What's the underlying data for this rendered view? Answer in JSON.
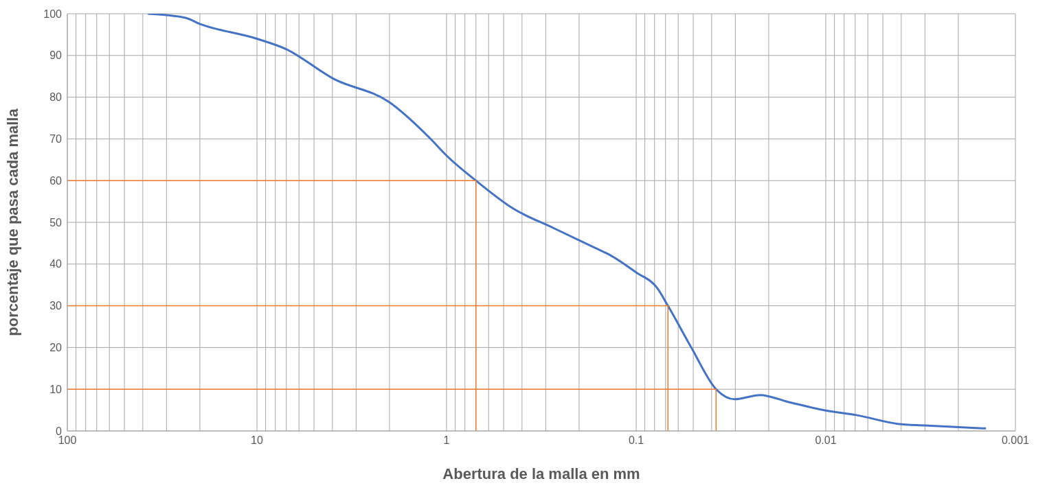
{
  "chart_data": {
    "type": "line",
    "xlabel": "Abertura de la malla en mm",
    "ylabel": "porcentaje que pasa cada malla",
    "log": "x",
    "grid": true,
    "marker": "none",
    "line_style": "solid",
    "xlim": [
      100,
      0.001
    ],
    "ylim": [
      0,
      100
    ],
    "xticks": [
      100,
      {
        "value": 90,
        "label": null
      },
      {
        "value": 80,
        "label": null
      },
      {
        "value": 70,
        "label": null
      },
      {
        "value": 60,
        "label": null
      },
      {
        "value": 50,
        "label": null
      },
      {
        "value": 40,
        "label": null
      },
      {
        "value": 30,
        "label": null
      },
      {
        "value": 20,
        "label": null
      },
      10,
      {
        "value": 9,
        "label": null
      },
      {
        "value": 8,
        "label": null
      },
      {
        "value": 7,
        "label": null
      },
      {
        "value": 6,
        "label": null
      },
      {
        "value": 5,
        "label": null
      },
      {
        "value": 4,
        "label": null
      },
      {
        "value": 3,
        "label": null
      },
      {
        "value": 2,
        "label": null
      },
      1,
      {
        "value": 0.9,
        "label": null
      },
      {
        "value": 0.8,
        "label": null
      },
      {
        "value": 0.7,
        "label": null
      },
      {
        "value": 0.6,
        "label": null
      },
      {
        "value": 0.5,
        "label": null
      },
      {
        "value": 0.4,
        "label": null
      },
      {
        "value": 0.3,
        "label": null
      },
      {
        "value": 0.2,
        "label": null
      },
      0.1,
      {
        "value": 0.09,
        "label": null
      },
      {
        "value": 0.08,
        "label": null
      },
      {
        "value": 0.07,
        "label": null
      },
      {
        "value": 0.06,
        "label": null
      },
      {
        "value": 0.05,
        "label": null
      },
      {
        "value": 0.04,
        "label": null
      },
      {
        "value": 0.03,
        "label": null
      },
      {
        "value": 0.02,
        "label": null
      },
      0.01,
      {
        "value": 0.009,
        "label": null
      },
      {
        "value": 0.008,
        "label": null
      },
      {
        "value": 0.007,
        "label": null
      },
      {
        "value": 0.006,
        "label": null
      },
      {
        "value": 0.005,
        "label": null
      },
      {
        "value": 0.004,
        "label": null
      },
      {
        "value": 0.003,
        "label": null
      },
      {
        "value": 0.002,
        "label": null
      },
      0.001
    ],
    "yticks": [
      0,
      10,
      20,
      30,
      40,
      50,
      60,
      70,
      80,
      90,
      100
    ],
    "series": [
      {
        "color": "#4472c4",
        "x": [
          37.6,
          23.8,
          20.1,
          10,
          7.08,
          3.94,
          2.02,
          1.22,
          1,
          0.7,
          0.449,
          0.272,
          0.165,
          0.139,
          0.1,
          0.0776,
          0.068,
          0.0512,
          0.0379,
          0.0302,
          0.0222,
          0.0159,
          0.01,
          0.00689,
          0.00417,
          0.00299,
          0.00143
        ],
        "values": [
          100,
          99,
          97.6,
          94,
          91.6,
          84.4,
          78.9,
          70.1,
          66,
          60,
          53.4,
          48.6,
          43.9,
          42.3,
          38,
          34.3,
          30,
          20,
          10,
          7.6,
          8.6,
          7,
          4.9,
          3.8,
          1.7,
          1.3,
          0.6
        ]
      },
      {
        "color": "#ed7d31",
        "x": [
          100,
          0.7,
          0.7
        ],
        "values": [
          60,
          60,
          0
        ]
      },
      {
        "color": "#ed7d31",
        "x": [
          100,
          0.068,
          0.068
        ],
        "values": [
          30,
          30,
          0
        ]
      },
      {
        "color": "#ed7d31",
        "x": [
          100,
          0.0379,
          0.0379
        ],
        "values": [
          10,
          10,
          0
        ]
      }
    ]
  }
}
